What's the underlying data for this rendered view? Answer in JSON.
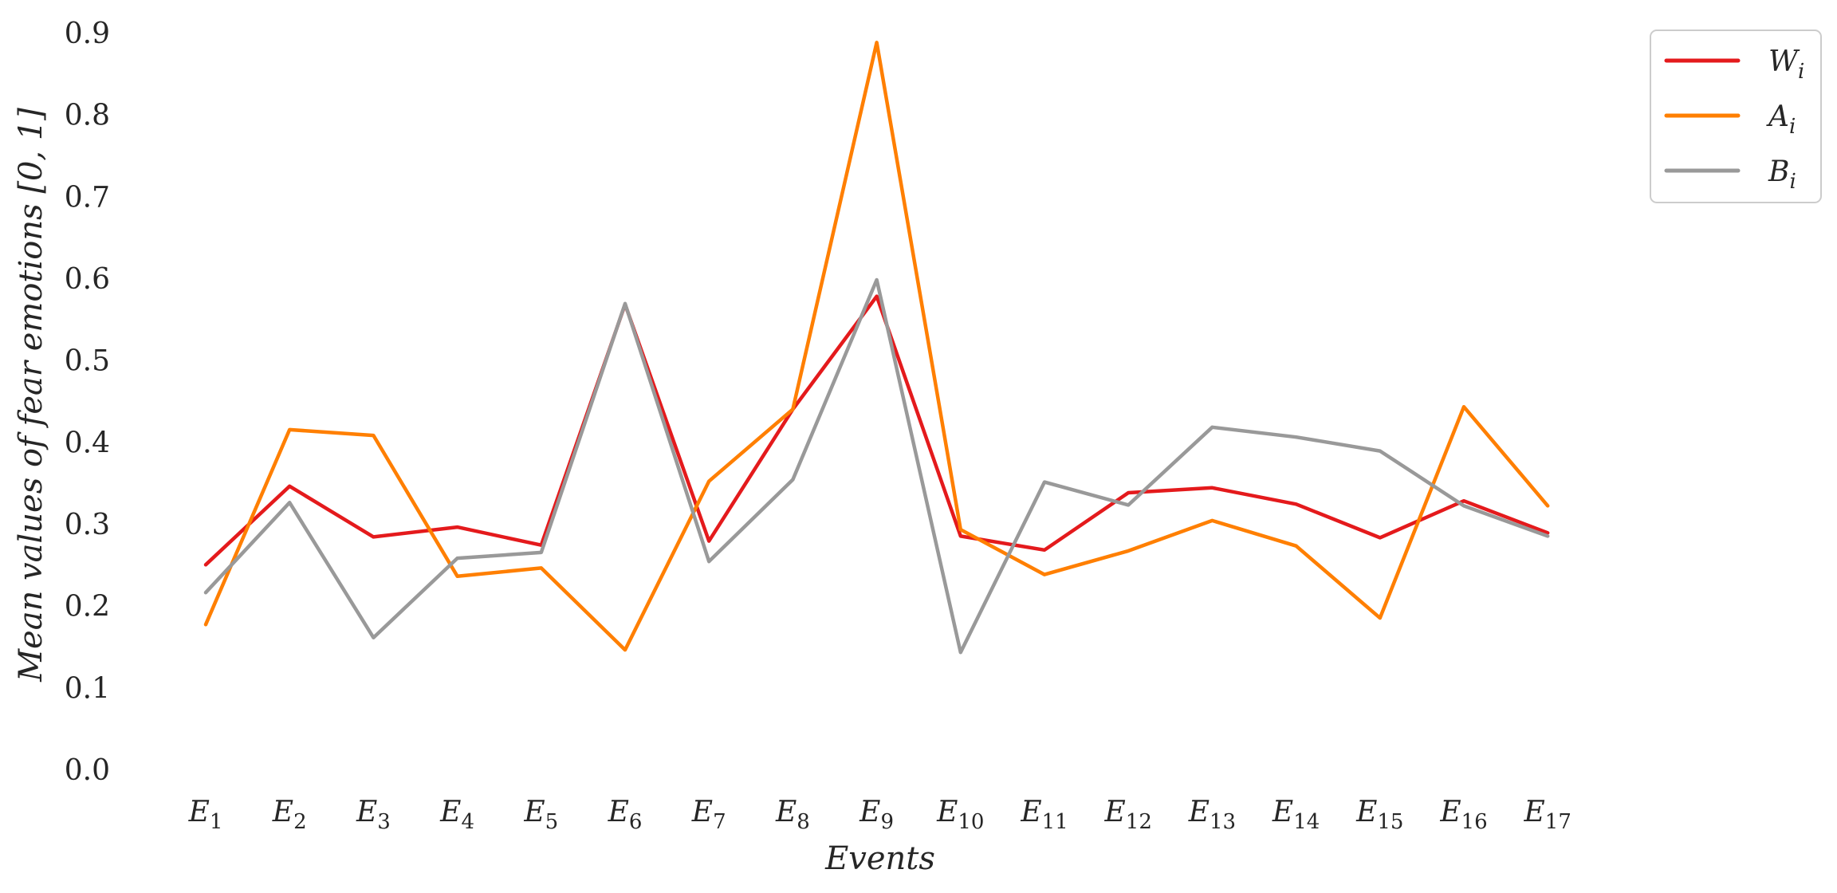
{
  "chart_data": {
    "type": "line",
    "xlabel": "Events",
    "ylabel": "Mean values of fear emotions [0, 1]",
    "ylim": [
      0,
      0.9
    ],
    "yticks": [
      "0.0",
      "0.1",
      "0.2",
      "0.3",
      "0.4",
      "0.5",
      "0.6",
      "0.7",
      "0.8",
      "0.9"
    ],
    "grid": false,
    "legend": "top-right, outside plot",
    "categories": [
      {
        "base": "E",
        "sub": "1"
      },
      {
        "base": "E",
        "sub": "2"
      },
      {
        "base": "E",
        "sub": "3"
      },
      {
        "base": "E",
        "sub": "4"
      },
      {
        "base": "E",
        "sub": "5"
      },
      {
        "base": "E",
        "sub": "6"
      },
      {
        "base": "E",
        "sub": "7"
      },
      {
        "base": "E",
        "sub": "8"
      },
      {
        "base": "E",
        "sub": "9"
      },
      {
        "base": "E",
        "sub": "10"
      },
      {
        "base": "E",
        "sub": "11"
      },
      {
        "base": "E",
        "sub": "12"
      },
      {
        "base": "E",
        "sub": "13"
      },
      {
        "base": "E",
        "sub": "14"
      },
      {
        "base": "E",
        "sub": "15"
      },
      {
        "base": "E",
        "sub": "16"
      },
      {
        "base": "E",
        "sub": "17"
      }
    ],
    "series": [
      {
        "name": "W",
        "name_sub": "i",
        "color": "#e41a1c",
        "values": [
          0.25,
          0.346,
          0.284,
          0.296,
          0.274,
          0.568,
          0.279,
          0.44,
          0.578,
          0.285,
          0.268,
          0.338,
          0.344,
          0.324,
          0.283,
          0.328,
          0.289
        ]
      },
      {
        "name": "A",
        "name_sub": "i",
        "color": "#ff7f00",
        "values": [
          0.177,
          0.415,
          0.408,
          0.236,
          0.246,
          0.146,
          0.352,
          0.44,
          0.888,
          0.293,
          0.238,
          0.267,
          0.304,
          0.273,
          0.185,
          0.443,
          0.322
        ]
      },
      {
        "name": "B",
        "name_sub": "i",
        "color": "#999999",
        "values": [
          0.216,
          0.326,
          0.161,
          0.258,
          0.265,
          0.569,
          0.254,
          0.354,
          0.598,
          0.143,
          0.351,
          0.323,
          0.418,
          0.406,
          0.389,
          0.322,
          0.285
        ]
      }
    ]
  }
}
